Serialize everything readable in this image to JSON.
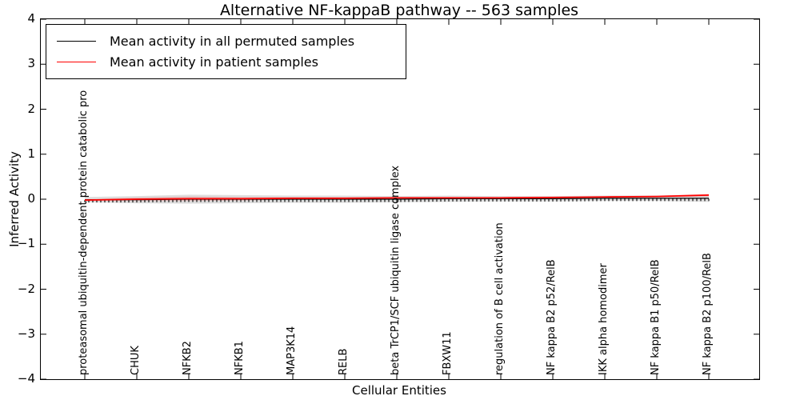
{
  "figure": {
    "title": "Alternative NF-kappaB pathway -- 563 samples",
    "xlabel": "Cellular Entities",
    "ylabel": "Inferred Activity"
  },
  "legend": {
    "position": "upper left",
    "entries": [
      {
        "label": "Mean activity in all permuted samples",
        "color": "#000000"
      },
      {
        "label": "Mean activity in patient samples",
        "color": "#ff0000"
      }
    ]
  },
  "colors": {
    "permuted_line": "#000000",
    "patient_line": "#ff0000",
    "permuted_band": "rgba(0,0,0,0.13)",
    "patient_band": "rgba(255,0,0,0.16)",
    "axis": "#000000",
    "background": "#ffffff"
  },
  "chart_data": {
    "type": "line",
    "title": "Alternative NF-kappaB pathway -- 563 samples",
    "xlabel": "Cellular Entities",
    "ylabel": "Inferred Activity",
    "ylim": [
      -4,
      4
    ],
    "grid": false,
    "legend_position": "upper left",
    "yticks": {
      "values": [
        4,
        3,
        2,
        1,
        0,
        -1,
        -2,
        -3,
        -4
      ],
      "labels": [
        "4",
        "3",
        "2",
        "1",
        "0",
        "−1",
        "−2",
        "−3",
        "−4"
      ]
    },
    "categories": [
      "proteasomal ubiquitin-dependent protein catabolic pro",
      "CHUK",
      "NFKB2",
      "NFKB1",
      "MAP3K14",
      "RELB",
      "beta TrCP1/SCF ubiquitin ligase complex",
      "FBXW11",
      "regulation of B cell activation",
      "NF kappa B2 p52/RelB",
      "IKK alpha homodimer",
      "NF kappa B1 p50/RelB",
      "NF kappa B2 p100/RelB"
    ],
    "series": [
      {
        "name": "Mean activity in all permuted samples",
        "color": "#000000",
        "values": [
          -0.01,
          -0.01,
          0.0,
          0.0,
          0.0,
          0.0,
          0.0,
          0.01,
          0.01,
          0.01,
          0.02,
          0.02,
          0.02
        ]
      },
      {
        "name": "Mean activity in patient samples",
        "color": "#ff0000",
        "values": [
          -0.02,
          0.0,
          0.01,
          0.01,
          0.02,
          0.02,
          0.03,
          0.03,
          0.03,
          0.04,
          0.05,
          0.06,
          0.09
        ]
      }
    ],
    "permuted_band_halfwidth": [
      0.06,
      0.08,
      0.1,
      0.09,
      0.08,
      0.08,
      0.07,
      0.07,
      0.06,
      0.06,
      0.06,
      0.06,
      0.08
    ],
    "patient_band_halfwidth": [
      0.02,
      0.04,
      0.05,
      0.04,
      0.03,
      0.03,
      0.02,
      0.02,
      0.02,
      0.02,
      0.02,
      0.02,
      0.03
    ]
  }
}
